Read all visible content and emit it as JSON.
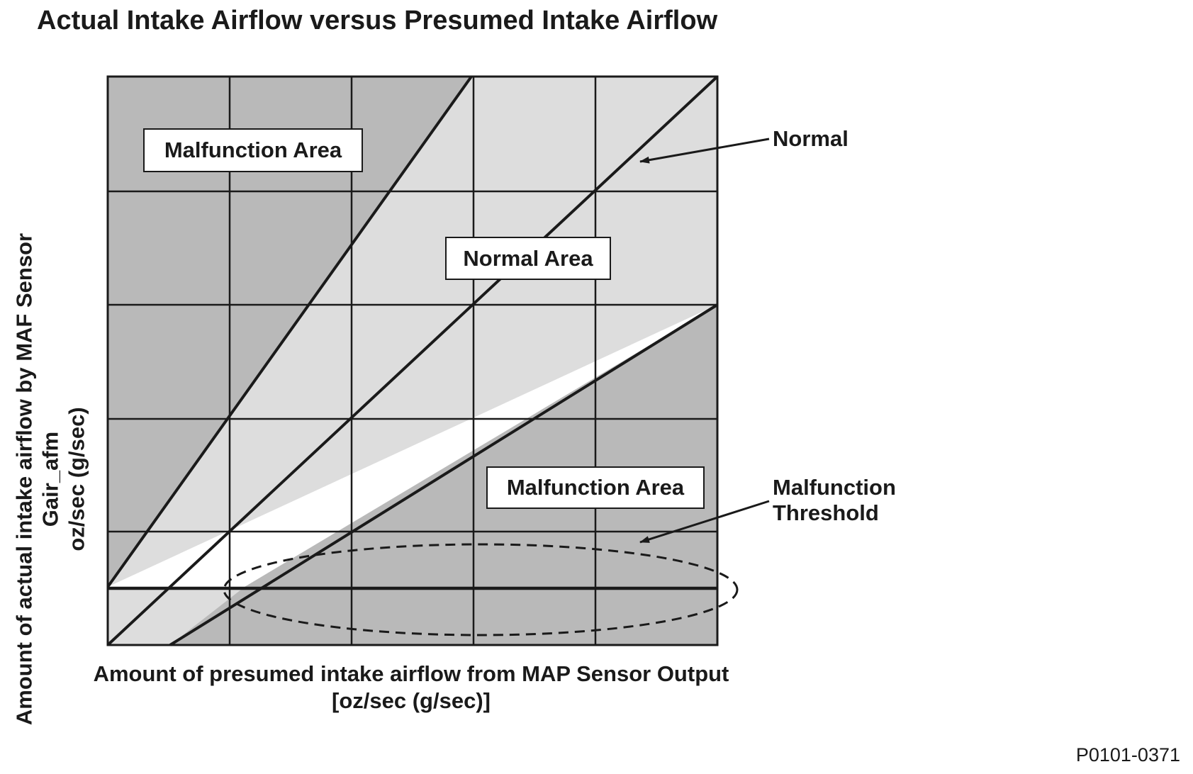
{
  "title": "Actual Intake Airflow versus Presumed Intake Airflow",
  "x_axis_label": {
    "line1": "Amount of presumed intake airflow from MAP Sensor Output",
    "line2": "[oz/sec (g/sec)]"
  },
  "y_axis_label": {
    "line1": "Amount of actual intake airflow by MAF Sensor",
    "line2": "Gair_afm",
    "line3": "oz/sec (g/sec)"
  },
  "regions": {
    "upper_malfunction": "Malfunction Area",
    "normal": "Normal Area",
    "lower_malfunction": "Malfunction Area"
  },
  "callouts": {
    "normal": "Normal",
    "threshold_line1": "Malfunction",
    "threshold_line2": "Threshold"
  },
  "figure_code": "P0101-0371",
  "colors": {
    "malfunction_fill": "#b9b9b9",
    "normal_fill": "#dddddd",
    "line": "#1a1a1a",
    "box_fill": "#ffffff"
  }
}
